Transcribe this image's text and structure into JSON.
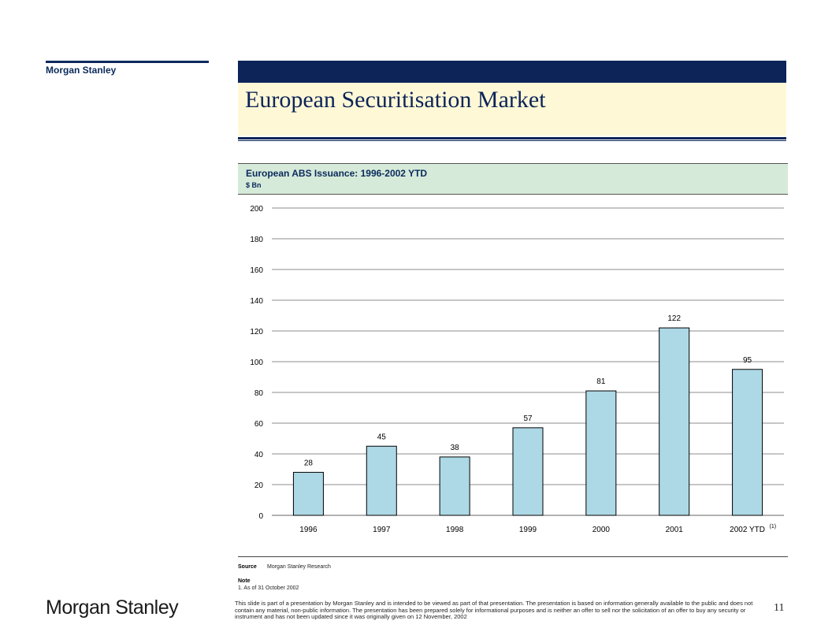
{
  "brand": {
    "name": "Morgan Stanley",
    "logo_text": "Morgan Stanley"
  },
  "slide": {
    "title": "European Securitisation Market",
    "page_number": "11"
  },
  "colors": {
    "navy": "#0c2458",
    "title_background": "#fff8d6",
    "chart_header_background": "#d6ead9",
    "bar_fill": "#add8e6"
  },
  "chart_data": {
    "type": "bar",
    "title": "European ABS Issuance: 1996-2002 YTD",
    "unit": "$ Bn",
    "categories": [
      "1996",
      "1997",
      "1998",
      "1999",
      "2000",
      "2001",
      "2002 YTD"
    ],
    "category_footnote": {
      "index": 6,
      "marker": "(1)"
    },
    "values": [
      28,
      45,
      38,
      57,
      81,
      122,
      95
    ],
    "data_labels": [
      "28",
      "45",
      "38",
      "57",
      "81",
      "122",
      "95"
    ],
    "yticks": [
      "0",
      "20",
      "40",
      "60",
      "80",
      "100",
      "120",
      "140",
      "160",
      "180",
      "200"
    ],
    "ylim": [
      0,
      200
    ],
    "grid": true,
    "legend": "none"
  },
  "footer": {
    "source_label": "Source",
    "source_text": "Morgan Stanley Research",
    "note_label": "Note",
    "note_text": "1.  As of 31 October 2002",
    "disclaimer": "This slide is part of a presentation by Morgan Stanley and is intended to be viewed as part of that presentation. The presentation is based on information generally available to the public and does not contain any material, non-public information. The presentation has been prepared solely for informational purposes and is neither an offer to sell nor the solicitation of an offer to buy any security or instrument and has not been updated since it was originally given on 12 November, 2002"
  }
}
